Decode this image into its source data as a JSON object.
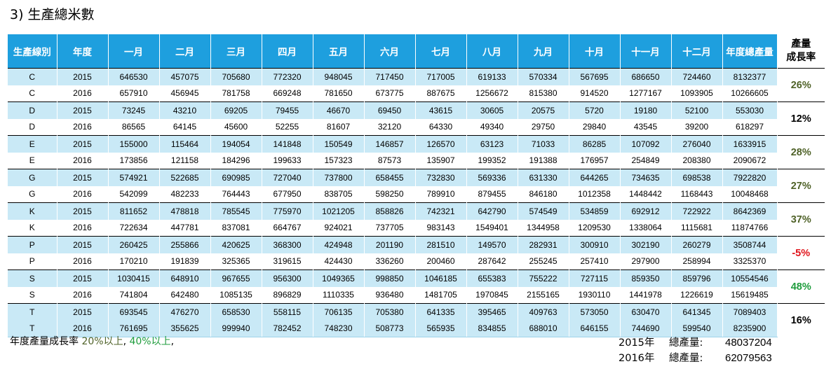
{
  "title": "3) 生產總米數",
  "headers": [
    "生產線別",
    "年度",
    "一月",
    "二月",
    "三月",
    "四月",
    "五月",
    "六月",
    "七月",
    "八月",
    "九月",
    "十月",
    "十一月",
    "十二月",
    "年度總產量"
  ],
  "growth_header": [
    "產量",
    "成長率"
  ],
  "lines": [
    {
      "line": "C",
      "growth": "26%",
      "growth_color": "#4f6228",
      "rows": [
        {
          "year": "2015",
          "months": [
            "646530",
            "457075",
            "705680",
            "772320",
            "948045",
            "717450",
            "717005",
            "619133",
            "570334",
            "567695",
            "686650",
            "724460"
          ],
          "total": "8132377"
        },
        {
          "year": "2016",
          "months": [
            "657910",
            "456945",
            "781758",
            "669248",
            "781650",
            "673775",
            "887675",
            "1256672",
            "815380",
            "914520",
            "1277167",
            "1093905"
          ],
          "total": "10266605"
        }
      ]
    },
    {
      "line": "D",
      "growth": "12%",
      "growth_color": "#000000",
      "rows": [
        {
          "year": "2015",
          "months": [
            "73245",
            "43210",
            "69205",
            "79455",
            "46670",
            "69450",
            "43615",
            "30605",
            "20575",
            "5720",
            "19180",
            "52100"
          ],
          "total": "553030"
        },
        {
          "year": "2016",
          "months": [
            "86565",
            "64145",
            "45600",
            "52255",
            "81607",
            "32120",
            "64330",
            "49340",
            "29750",
            "29840",
            "43545",
            "39200"
          ],
          "total": "618297"
        }
      ]
    },
    {
      "line": "E",
      "growth": "28%",
      "growth_color": "#4f6228",
      "rows": [
        {
          "year": "2015",
          "months": [
            "155000",
            "115464",
            "194054",
            "141848",
            "150549",
            "146857",
            "126570",
            "63123",
            "71033",
            "86285",
            "107092",
            "276040"
          ],
          "total": "1633915"
        },
        {
          "year": "2016",
          "months": [
            "173856",
            "121158",
            "184296",
            "199633",
            "157323",
            "87573",
            "135907",
            "199352",
            "191388",
            "176957",
            "254849",
            "208380"
          ],
          "total": "2090672"
        }
      ]
    },
    {
      "line": "G",
      "growth": "27%",
      "growth_color": "#4f6228",
      "rows": [
        {
          "year": "2015",
          "months": [
            "574921",
            "522685",
            "690985",
            "727040",
            "737800",
            "658455",
            "732830",
            "569336",
            "631330",
            "644265",
            "734635",
            "698538"
          ],
          "total": "7922820"
        },
        {
          "year": "2016",
          "months": [
            "542099",
            "482233",
            "764443",
            "677950",
            "838705",
            "598250",
            "789910",
            "879455",
            "846180",
            "1012358",
            "1448442",
            "1168443"
          ],
          "total": "10048468"
        }
      ]
    },
    {
      "line": "K",
      "growth": "37%",
      "growth_color": "#4f6228",
      "rows": [
        {
          "year": "2015",
          "months": [
            "811652",
            "478818",
            "785545",
            "775970",
            "1021205",
            "858826",
            "742321",
            "642790",
            "574549",
            "534859",
            "692912",
            "722922"
          ],
          "total": "8642369"
        },
        {
          "year": "2016",
          "months": [
            "722634",
            "447781",
            "837081",
            "664767",
            "924021",
            "737705",
            "983143",
            "1549401",
            "1344958",
            "1209530",
            "1338064",
            "1115681"
          ],
          "total": "11874766"
        }
      ]
    },
    {
      "line": "P",
      "growth": "-5%",
      "growth_color": "#e0141b",
      "rows": [
        {
          "year": "2015",
          "months": [
            "260425",
            "255866",
            "420625",
            "368300",
            "424948",
            "201190",
            "281510",
            "149570",
            "282931",
            "300910",
            "302190",
            "260279"
          ],
          "total": "3508744"
        },
        {
          "year": "2016",
          "months": [
            "170210",
            "191839",
            "325365",
            "319615",
            "424430",
            "336260",
            "200460",
            "287642",
            "255245",
            "257410",
            "297900",
            "258994"
          ],
          "total": "3325370"
        }
      ]
    },
    {
      "line": "S",
      "growth": "48%",
      "growth_color": "#1e9c3c",
      "rows": [
        {
          "year": "2015",
          "months": [
            "1030415",
            "648910",
            "967655",
            "956300",
            "1049365",
            "998850",
            "1046185",
            "655383",
            "755222",
            "727115",
            "859350",
            "859796"
          ],
          "total": "10554546"
        },
        {
          "year": "2016",
          "months": [
            "741804",
            "642480",
            "1085135",
            "896829",
            "1110335",
            "936480",
            "1481705",
            "1970845",
            "2155165",
            "1930110",
            "1441978",
            "1226619"
          ],
          "total": "15619485"
        }
      ]
    },
    {
      "line": "T",
      "growth": "16%",
      "growth_color": "#000000",
      "rows": [
        {
          "year": "2015",
          "months": [
            "693545",
            "476270",
            "658530",
            "558115",
            "706135",
            "705380",
            "641335",
            "395465",
            "409763",
            "573050",
            "630470",
            "641345"
          ],
          "total": "7089403"
        },
        {
          "year": "2016",
          "months": [
            "761695",
            "355625",
            "999940",
            "782452",
            "748230",
            "508773",
            "565935",
            "834855",
            "688010",
            "646155",
            "744690",
            "599540"
          ],
          "total": "8235900"
        }
      ]
    }
  ],
  "note": {
    "prefix": "年度產量成長率 ",
    "olive": "20%以上",
    "sep": ", ",
    "green": "40%以上",
    "suffix": ","
  },
  "totals": [
    {
      "year": "2015年",
      "label": "總產量:",
      "value": "48037204"
    },
    {
      "year": "2016年",
      "label": "總產量:",
      "value": "62079563"
    }
  ]
}
